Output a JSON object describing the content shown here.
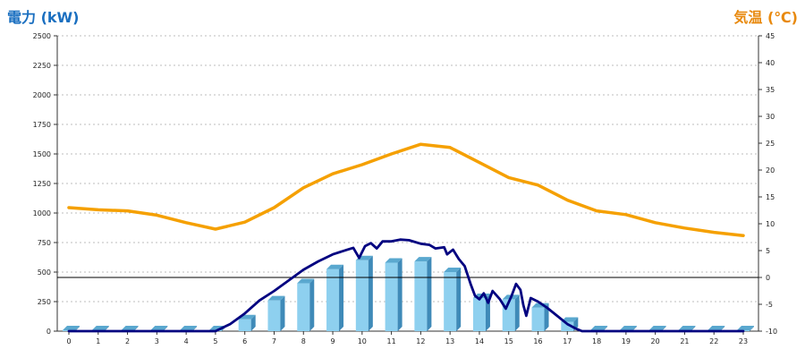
{
  "chart_data": {
    "type": "bar",
    "title_left": "電力 (kW)",
    "title_right": "気温 (℃)",
    "categories": [
      "0",
      "1",
      "2",
      "3",
      "4",
      "5",
      "6",
      "7",
      "8",
      "9",
      "10",
      "11",
      "12",
      "13",
      "14",
      "15",
      "16",
      "17",
      "18",
      "19",
      "20",
      "21",
      "22",
      "23"
    ],
    "y_left": {
      "lim": [
        0,
        2500
      ],
      "ticks": [
        0,
        250,
        500,
        750,
        1000,
        1250,
        1500,
        1750,
        2000,
        2250,
        2500
      ]
    },
    "y_right": {
      "lim": [
        -10,
        45
      ],
      "ticks": [
        -10,
        -5,
        0,
        5,
        10,
        15,
        20,
        25,
        30,
        35,
        40,
        45
      ]
    },
    "bar_series": {
      "axis": "left",
      "values": [
        0,
        0,
        0,
        0,
        0,
        0,
        100,
        260,
        405,
        525,
        600,
        580,
        590,
        500,
        280,
        270,
        200,
        80,
        0,
        0,
        0,
        0,
        0,
        0
      ]
    },
    "power_line": {
      "axis": "left",
      "points": [
        [
          0,
          0
        ],
        [
          5,
          0
        ],
        [
          5.5,
          60
        ],
        [
          6,
          150
        ],
        [
          6.5,
          260
        ],
        [
          7,
          340
        ],
        [
          7.5,
          430
        ],
        [
          8,
          520
        ],
        [
          8.5,
          590
        ],
        [
          9,
          650
        ],
        [
          9.5,
          690
        ],
        [
          9.7,
          705
        ],
        [
          9.9,
          620
        ],
        [
          10.1,
          720
        ],
        [
          10.3,
          745
        ],
        [
          10.5,
          700
        ],
        [
          10.7,
          760
        ],
        [
          11,
          760
        ],
        [
          11.3,
          775
        ],
        [
          11.6,
          770
        ],
        [
          12,
          740
        ],
        [
          12.3,
          730
        ],
        [
          12.5,
          700
        ],
        [
          12.8,
          710
        ],
        [
          12.9,
          650
        ],
        [
          13.1,
          690
        ],
        [
          13.3,
          610
        ],
        [
          13.5,
          550
        ],
        [
          13.7,
          400
        ],
        [
          13.85,
          300
        ],
        [
          14,
          270
        ],
        [
          14.15,
          320
        ],
        [
          14.3,
          240
        ],
        [
          14.45,
          340
        ],
        [
          14.7,
          270
        ],
        [
          14.9,
          190
        ],
        [
          15.1,
          300
        ],
        [
          15.25,
          400
        ],
        [
          15.4,
          350
        ],
        [
          15.5,
          220
        ],
        [
          15.6,
          130
        ],
        [
          15.75,
          280
        ],
        [
          16,
          250
        ],
        [
          16.3,
          200
        ],
        [
          16.6,
          140
        ],
        [
          17,
          60
        ],
        [
          17.3,
          20
        ],
        [
          17.5,
          0
        ],
        [
          23,
          0
        ]
      ],
      "color": "#000080"
    },
    "temperature_line": {
      "axis": "right",
      "values": [
        13,
        12.6,
        12.4,
        11.6,
        10.2,
        9,
        10.3,
        13,
        16.7,
        19.3,
        21,
        23,
        24.8,
        24.2,
        21.4,
        18.6,
        17.2,
        14.4,
        12.4,
        11.7,
        10.2,
        9.2,
        8.4,
        7.8
      ],
      "color": "#f5a000"
    },
    "zero_line_right_axis": 0,
    "grid": true,
    "colors": {
      "title_left": "#1a6fc0",
      "title_right": "#e8890e",
      "bar_front": "#8ed0ef",
      "bar_top": "#5aa8cf",
      "bar_side": "#3f8ab8"
    }
  }
}
